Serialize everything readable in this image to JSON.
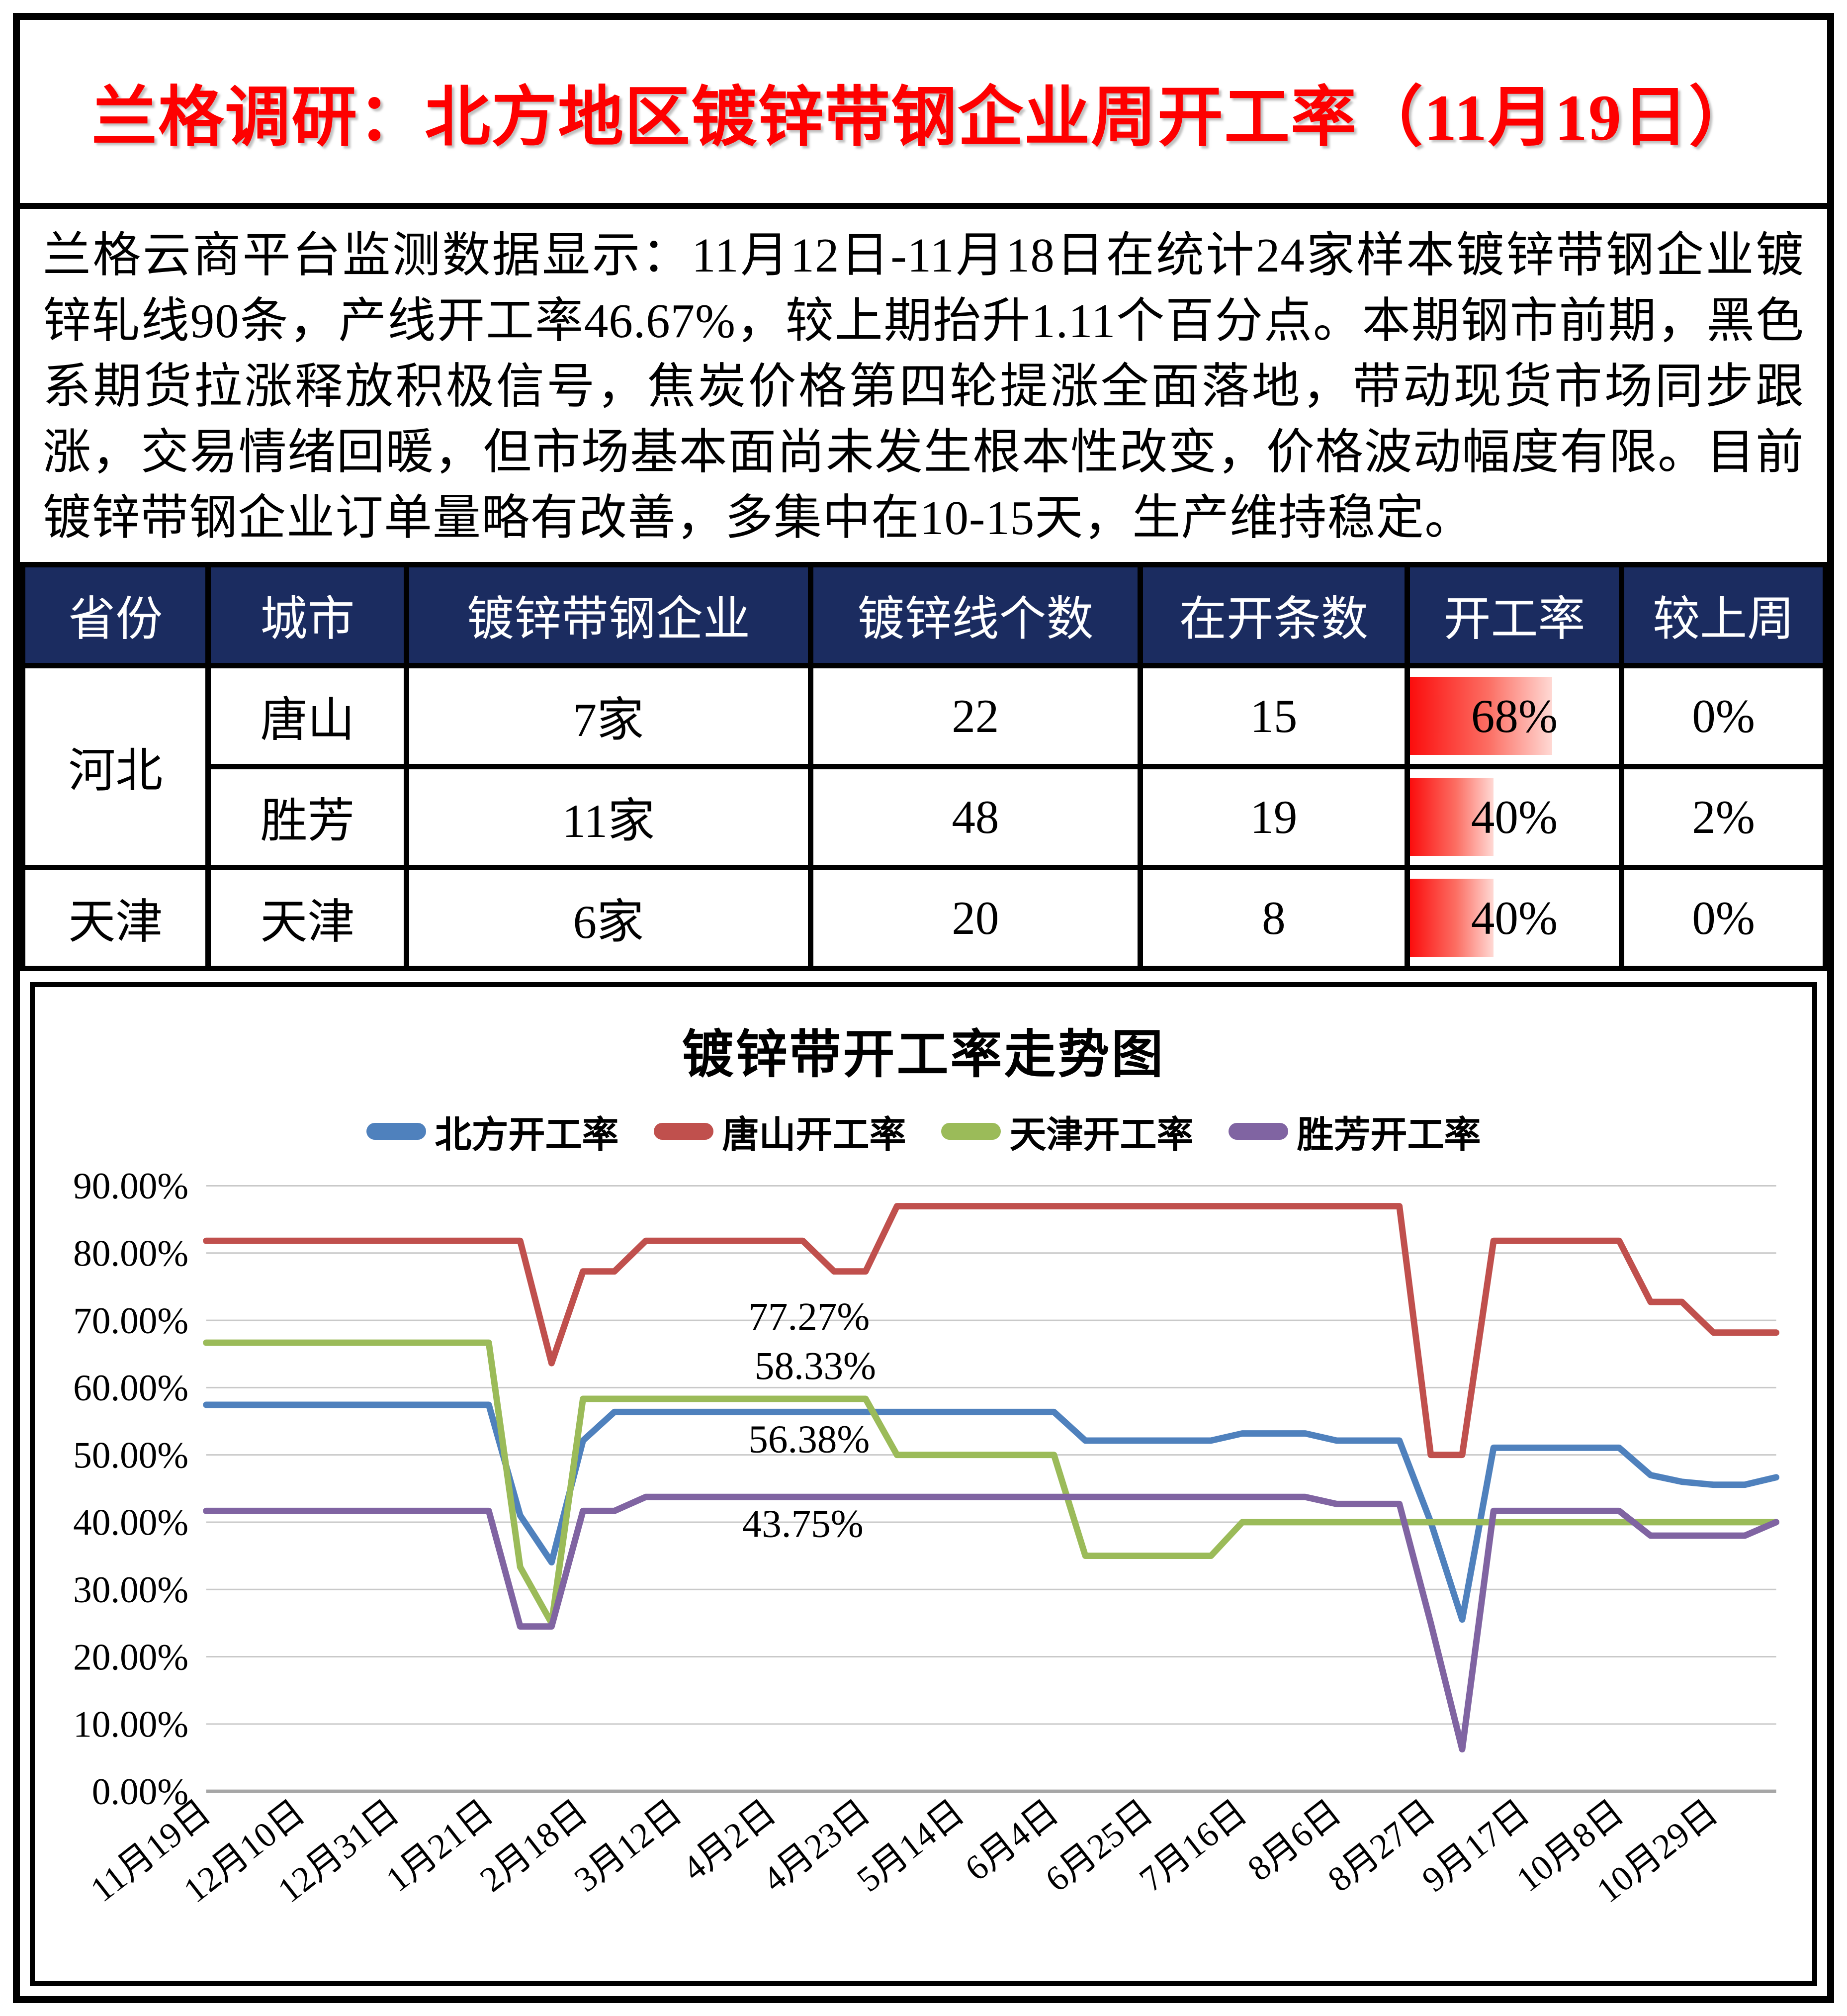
{
  "title": "兰格调研：北方地区镀锌带钢企业周开工率（11月19日）",
  "intro": "兰格云商平台监测数据显示：11月12日-11月18日在统计24家样本镀锌带钢企业镀锌轧线90条，产线开工率46.67%，较上期抬升1.11个百分点。本期钢市前期，黑色系期货拉涨释放积极信号，焦炭价格第四轮提涨全面落地，带动现货市场同步跟涨，交易情绪回暖，但市场基本面尚未发生根本性改变，价格波动幅度有限。目前镀锌带钢企业订单量略有改善，多集中在10-15天，生产维持稳定。",
  "table": {
    "headers": [
      "省份",
      "城市",
      "镀锌带钢企业",
      "镀锌线个数",
      "在开条数",
      "开工率",
      "较上周"
    ],
    "rows": [
      {
        "province": "河北",
        "city": "唐山",
        "companies": "7家",
        "lines": "22",
        "open": "15",
        "rate": "68%",
        "rate_value": 68,
        "wow": "0%"
      },
      {
        "province": "河北",
        "city": "胜芳",
        "companies": "11家",
        "lines": "48",
        "open": "19",
        "rate": "40%",
        "rate_value": 40,
        "wow": "2%"
      },
      {
        "province": "天津",
        "city": "天津",
        "companies": "6家",
        "lines": "20",
        "open": "8",
        "rate": "40%",
        "rate_value": 40,
        "wow": "0%"
      }
    ],
    "bar_color_start": "#fb0d0d"
  },
  "chart_data": {
    "type": "line",
    "title": "镀锌带开工率走势图",
    "ylim": [
      0,
      90
    ],
    "y_tick_step": 10,
    "y_tick_labels": [
      "0.00%",
      "10.00%",
      "20.00%",
      "30.00%",
      "40.00%",
      "50.00%",
      "60.00%",
      "70.00%",
      "80.00%",
      "90.00%"
    ],
    "grid": true,
    "legend_position": "top",
    "n_points": 51,
    "x_label_every": 3,
    "x_tick_labels": [
      "11月19日",
      "12月10日",
      "12月31日",
      "1月21日",
      "2月18日",
      "3月12日",
      "4月2日",
      "4月23日",
      "5月14日",
      "6月4日",
      "6月25日",
      "7月16日",
      "8月6日",
      "8月27日",
      "9月17日",
      "10月8日",
      "10月29日"
    ],
    "series": [
      {
        "name": "北方开工率",
        "color": "#4f81bd",
        "values": [
          57.45,
          57.45,
          57.45,
          57.45,
          57.45,
          57.45,
          57.45,
          57.45,
          57.45,
          57.45,
          41.0,
          34.04,
          52.13,
          56.38,
          56.38,
          56.38,
          56.38,
          56.38,
          56.38,
          56.38,
          56.38,
          56.38,
          56.38,
          56.38,
          56.38,
          56.38,
          56.38,
          56.38,
          52.13,
          52.13,
          52.13,
          52.13,
          52.13,
          53.19,
          53.19,
          53.19,
          52.13,
          52.13,
          52.13,
          40.0,
          25.53,
          51.06,
          51.06,
          51.06,
          51.06,
          51.06,
          47.0,
          46.0,
          45.56,
          45.56,
          46.67
        ]
      },
      {
        "name": "唐山开工率",
        "color": "#c0504d",
        "values": [
          81.82,
          81.82,
          81.82,
          81.82,
          81.82,
          81.82,
          81.82,
          81.82,
          81.82,
          81.82,
          81.82,
          63.64,
          77.27,
          77.27,
          81.82,
          81.82,
          81.82,
          81.82,
          81.82,
          81.82,
          77.27,
          77.27,
          86.96,
          86.96,
          86.96,
          86.96,
          86.96,
          86.96,
          86.96,
          86.96,
          86.96,
          86.96,
          86.96,
          86.96,
          86.96,
          86.96,
          86.96,
          86.96,
          86.96,
          50.0,
          50.0,
          81.82,
          81.82,
          81.82,
          81.82,
          81.82,
          72.73,
          72.73,
          68.18,
          68.18,
          68.18
        ]
      },
      {
        "name": "天津开工率",
        "color": "#9bbb59",
        "values": [
          66.67,
          66.67,
          66.67,
          66.67,
          66.67,
          66.67,
          66.67,
          66.67,
          66.67,
          66.67,
          33.33,
          25.0,
          58.33,
          58.33,
          58.33,
          58.33,
          58.33,
          58.33,
          58.33,
          58.33,
          58.33,
          58.33,
          50.0,
          50.0,
          50.0,
          50.0,
          50.0,
          50.0,
          35.0,
          35.0,
          35.0,
          35.0,
          35.0,
          40.0,
          40.0,
          40.0,
          40.0,
          40.0,
          40.0,
          40.0,
          40.0,
          40.0,
          40.0,
          40.0,
          40.0,
          40.0,
          40.0,
          40.0,
          40.0,
          40.0,
          40.0
        ]
      },
      {
        "name": "胜芳开工率",
        "color": "#8064a2",
        "values": [
          41.67,
          41.67,
          41.67,
          41.67,
          41.67,
          41.67,
          41.67,
          41.67,
          41.67,
          41.67,
          24.5,
          24.5,
          41.67,
          41.67,
          43.75,
          43.75,
          43.75,
          43.75,
          43.75,
          43.75,
          43.75,
          43.75,
          43.75,
          43.75,
          43.75,
          43.75,
          43.75,
          43.75,
          43.75,
          43.75,
          43.75,
          43.75,
          43.75,
          43.75,
          43.75,
          43.75,
          42.71,
          42.71,
          42.71,
          25.0,
          6.25,
          41.67,
          41.67,
          41.67,
          41.67,
          41.67,
          38.0,
          38.0,
          38.0,
          38.0,
          40.0
        ]
      }
    ],
    "annotations": [
      {
        "text": "77.27%",
        "xi": 19.2,
        "y": 70.5
      },
      {
        "text": "58.33%",
        "xi": 19.4,
        "y": 63.2
      },
      {
        "text": "56.38%",
        "xi": 19.2,
        "y": 52.3
      },
      {
        "text": "43.75%",
        "xi": 19.0,
        "y": 39.7
      }
    ]
  }
}
